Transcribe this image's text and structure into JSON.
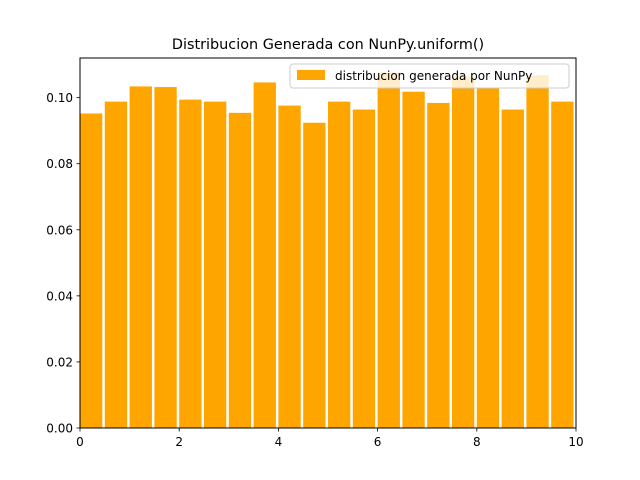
{
  "chart_data": {
    "type": "bar",
    "title": "Distribucion Generada con NunPy.uniform()",
    "xlabel": "",
    "ylabel": "",
    "xlim": [
      0,
      10
    ],
    "ylim": [
      0,
      0.112
    ],
    "bin_width": 0.5,
    "bar_width_fraction": 0.9,
    "bin_edges": [
      0,
      0.5,
      1,
      1.5,
      2,
      2.5,
      3,
      3.5,
      4,
      4.5,
      5,
      5.5,
      6,
      6.5,
      7,
      7.5,
      8,
      8.5,
      9,
      9.5,
      10
    ],
    "series": [
      {
        "name": "distribucion generada por NunPy",
        "color": "#ffa500",
        "values": [
          0.0952,
          0.0988,
          0.1034,
          0.1032,
          0.0994,
          0.0988,
          0.0954,
          0.1046,
          0.0976,
          0.0924,
          0.0988,
          0.0964,
          0.1076,
          0.1018,
          0.0984,
          0.1064,
          0.1028,
          0.0964,
          0.1068,
          0.0988
        ]
      }
    ],
    "x_ticks": [
      0,
      2,
      4,
      6,
      8,
      10
    ],
    "x_tick_labels": [
      "0",
      "2",
      "4",
      "6",
      "8",
      "10"
    ],
    "y_ticks": [
      0,
      0.02,
      0.04,
      0.06,
      0.08,
      0.1
    ],
    "y_tick_labels": [
      "0.00",
      "0.02",
      "0.04",
      "0.06",
      "0.08",
      "0.10"
    ],
    "legend": {
      "position": "top-right",
      "entries": [
        "distribucion generada por NunPy"
      ]
    },
    "grid": false
  }
}
